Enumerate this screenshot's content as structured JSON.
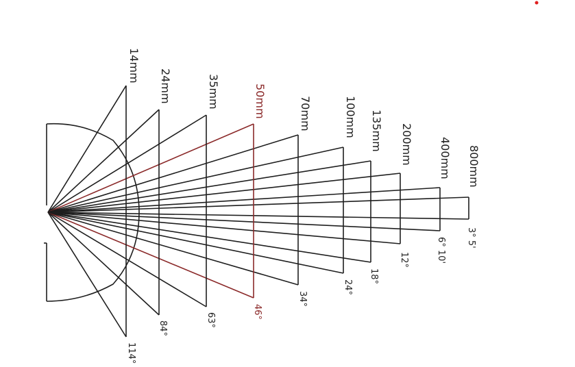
{
  "colors": {
    "line": "#1e1e1e",
    "highlight": "#8b2a2a",
    "dot": "#e02020"
  },
  "lenses": [
    {
      "name": "14mm",
      "angle": "114°",
      "highlight": false
    },
    {
      "name": "24mm",
      "angle": "84°",
      "highlight": false
    },
    {
      "name": "35mm",
      "angle": "63°",
      "highlight": false
    },
    {
      "name": "50mm",
      "angle": "46°",
      "highlight": true
    },
    {
      "name": "70mm",
      "angle": "34°",
      "highlight": false
    },
    {
      "name": "100mm",
      "angle": "24°",
      "highlight": false
    },
    {
      "name": "135mm",
      "angle": "18°",
      "highlight": false
    },
    {
      "name": "200mm",
      "angle": "12°",
      "highlight": false
    },
    {
      "name": "400mm",
      "angle": "6° 10'",
      "highlight": false
    },
    {
      "name": "800mm",
      "angle": "3° 5'",
      "highlight": false
    }
  ]
}
